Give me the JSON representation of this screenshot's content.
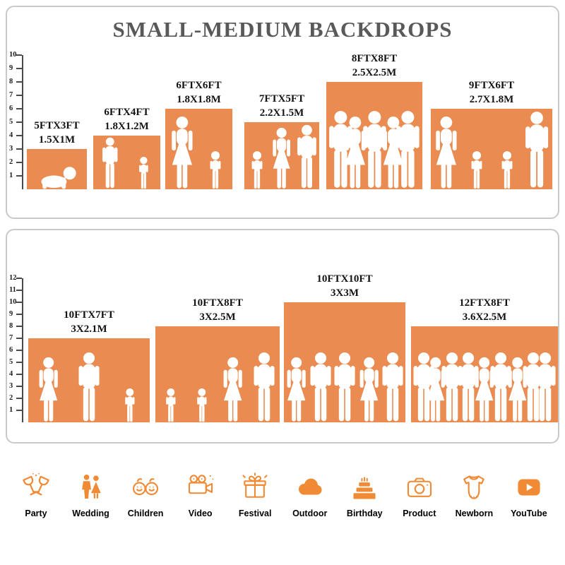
{
  "title": "SMALL-MEDIUM BACKDROPS",
  "colors": {
    "backdrop": "#EA8C51",
    "icon": "#F18A34",
    "title": "#595959",
    "panel_border": "#C9C9C9"
  },
  "panels": [
    {
      "name": "small-medium",
      "ruler_ticks": [
        10,
        9,
        8,
        7,
        6,
        5,
        4,
        3,
        2,
        1
      ],
      "backdrops": [
        {
          "size_ft": "5FTX3FT",
          "size_m": "1.5X1M",
          "width_ft": 5,
          "height_ft": 3,
          "figures": [
            "baby"
          ]
        },
        {
          "size_ft": "6FTX4FT",
          "size_m": "1.8X1.2M",
          "width_ft": 6,
          "height_ft": 4,
          "figures": [
            "man",
            "child"
          ]
        },
        {
          "size_ft": "6FTX6FT",
          "size_m": "1.8X1.8M",
          "width_ft": 6,
          "height_ft": 6,
          "figures": [
            "woman",
            "child"
          ]
        },
        {
          "size_ft": "7FTX5FT",
          "size_m": "2.2X1.5M",
          "width_ft": 7,
          "height_ft": 5,
          "figures": [
            "child",
            "woman",
            "man"
          ]
        },
        {
          "size_ft": "8FTX8FT",
          "size_m": "2.5X2.5M",
          "width_ft": 8,
          "height_ft": 8,
          "figures": [
            "man",
            "woman",
            "man",
            "woman",
            "man"
          ]
        },
        {
          "size_ft": "9FTX6FT",
          "size_m": "2.7X1.8M",
          "width_ft": 9,
          "height_ft": 6,
          "figures": [
            "woman",
            "child",
            "child",
            "man"
          ]
        }
      ]
    },
    {
      "name": "medium-large",
      "ruler_ticks": [
        12,
        11,
        10,
        9,
        8,
        7,
        6,
        5,
        4,
        3,
        2,
        1
      ],
      "backdrops": [
        {
          "size_ft": "10FTX7FT",
          "size_m": "3X2.1M",
          "width_ft": 10,
          "height_ft": 7,
          "figures": [
            "woman",
            "man",
            "child"
          ]
        },
        {
          "size_ft": "10FTX8FT",
          "size_m": "3X2.5M",
          "width_ft": 10,
          "height_ft": 8,
          "figures": [
            "child",
            "child",
            "woman",
            "man"
          ]
        },
        {
          "size_ft": "10FTX10FT",
          "size_m": "3X3M",
          "width_ft": 10,
          "height_ft": 10,
          "figures": [
            "woman",
            "man",
            "man",
            "woman",
            "man"
          ]
        },
        {
          "size_ft": "12FTX8FT",
          "size_m": "3.6X2.5M",
          "width_ft": 12,
          "height_ft": 8,
          "figures": [
            "man",
            "woman",
            "man",
            "man",
            "woman",
            "man",
            "woman",
            "man",
            "man"
          ]
        }
      ]
    }
  ],
  "categories": [
    {
      "label": "Party",
      "icon": "party-icon"
    },
    {
      "label": "Wedding",
      "icon": "wedding-icon"
    },
    {
      "label": "Children",
      "icon": "children-icon"
    },
    {
      "label": "Video",
      "icon": "video-icon"
    },
    {
      "label": "Festival",
      "icon": "festival-icon"
    },
    {
      "label": "Outdoor",
      "icon": "outdoor-icon"
    },
    {
      "label": "Birthday",
      "icon": "birthday-icon"
    },
    {
      "label": "Product",
      "icon": "product-icon"
    },
    {
      "label": "Newborn",
      "icon": "newborn-icon"
    },
    {
      "label": "YouTube",
      "icon": "youtube-icon"
    }
  ]
}
